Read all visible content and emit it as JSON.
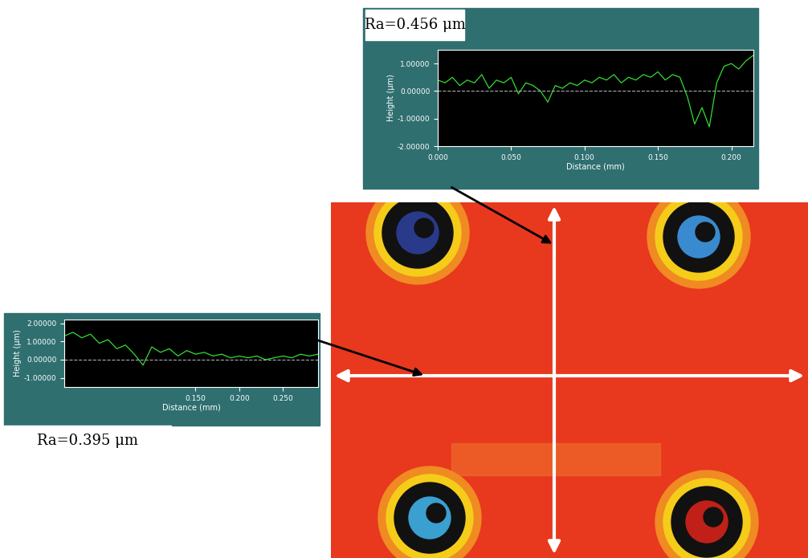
{
  "chart_data": [
    {
      "type": "line",
      "annotation": "Ra=0.456 μm",
      "xlabel": "Distance (mm)",
      "ylabel": "Height (μm)",
      "color": "#33dd33",
      "baseline": 0,
      "x": [
        0.0,
        0.005,
        0.01,
        0.015,
        0.02,
        0.025,
        0.03,
        0.035,
        0.04,
        0.045,
        0.05,
        0.055,
        0.06,
        0.065,
        0.07,
        0.075,
        0.08,
        0.085,
        0.09,
        0.095,
        0.1,
        0.105,
        0.11,
        0.115,
        0.12,
        0.125,
        0.13,
        0.135,
        0.14,
        0.145,
        0.15,
        0.155,
        0.16,
        0.165,
        0.17,
        0.175,
        0.18,
        0.185,
        0.19,
        0.195,
        0.2,
        0.205,
        0.21,
        0.215
      ],
      "values": [
        0.4,
        0.3,
        0.5,
        0.2,
        0.4,
        0.3,
        0.6,
        0.1,
        0.4,
        0.3,
        0.5,
        -0.1,
        0.3,
        0.2,
        0.0,
        -0.4,
        0.2,
        0.1,
        0.3,
        0.2,
        0.4,
        0.3,
        0.5,
        0.4,
        0.6,
        0.3,
        0.5,
        0.4,
        0.6,
        0.5,
        0.7,
        0.4,
        0.6,
        0.5,
        -0.2,
        -1.2,
        -0.6,
        -1.3,
        0.3,
        0.9,
        1.0,
        0.8,
        1.1,
        1.3
      ],
      "xlim": [
        0.0,
        0.215
      ],
      "ylim": [
        -2.0,
        1.5
      ],
      "xticks": [
        {
          "value": 0.0,
          "label": "0.000"
        },
        {
          "value": 0.05,
          "label": "0.050"
        },
        {
          "value": 0.1,
          "label": "0.100"
        },
        {
          "value": 0.15,
          "label": "0.150"
        },
        {
          "value": 0.2,
          "label": "0.200"
        }
      ],
      "yticks": [
        {
          "value": -2,
          "label": "-2.00000"
        },
        {
          "value": -1,
          "label": "-1.00000"
        },
        {
          "value": 0,
          "label": "0.00000"
        },
        {
          "value": 1,
          "label": "1.00000"
        }
      ]
    },
    {
      "type": "line",
      "annotation": "Ra=0.395 μm",
      "xlabel": "Distance (mm)",
      "ylabel": "Height (μm)",
      "color": "#33dd33",
      "baseline": 0,
      "x": [
        0.0,
        0.01,
        0.02,
        0.03,
        0.04,
        0.05,
        0.06,
        0.07,
        0.08,
        0.09,
        0.1,
        0.11,
        0.12,
        0.13,
        0.14,
        0.15,
        0.16,
        0.17,
        0.18,
        0.19,
        0.2,
        0.21,
        0.22,
        0.23,
        0.24,
        0.25,
        0.26,
        0.27,
        0.28,
        0.29
      ],
      "values": [
        1.3,
        1.5,
        1.2,
        1.4,
        0.9,
        1.1,
        0.6,
        0.8,
        0.3,
        -0.3,
        0.7,
        0.4,
        0.6,
        0.2,
        0.5,
        0.3,
        0.4,
        0.2,
        0.3,
        0.1,
        0.2,
        0.1,
        0.2,
        0.0,
        0.1,
        0.2,
        0.1,
        0.3,
        0.2,
        0.3
      ],
      "xlim": [
        0.0,
        0.29
      ],
      "ylim": [
        -1.5,
        2.2
      ],
      "xticks": [
        {
          "value": 0.15,
          "label": "0.150"
        },
        {
          "value": 0.2,
          "label": "0.200"
        },
        {
          "value": 0.25,
          "label": "0.250"
        }
      ],
      "yticks": [
        {
          "value": -1,
          "label": "-1.00000"
        },
        {
          "value": 0,
          "label": "0.00000"
        },
        {
          "value": 1,
          "label": "1.00000"
        },
        {
          "value": 2,
          "label": "2.00000"
        }
      ]
    }
  ]
}
